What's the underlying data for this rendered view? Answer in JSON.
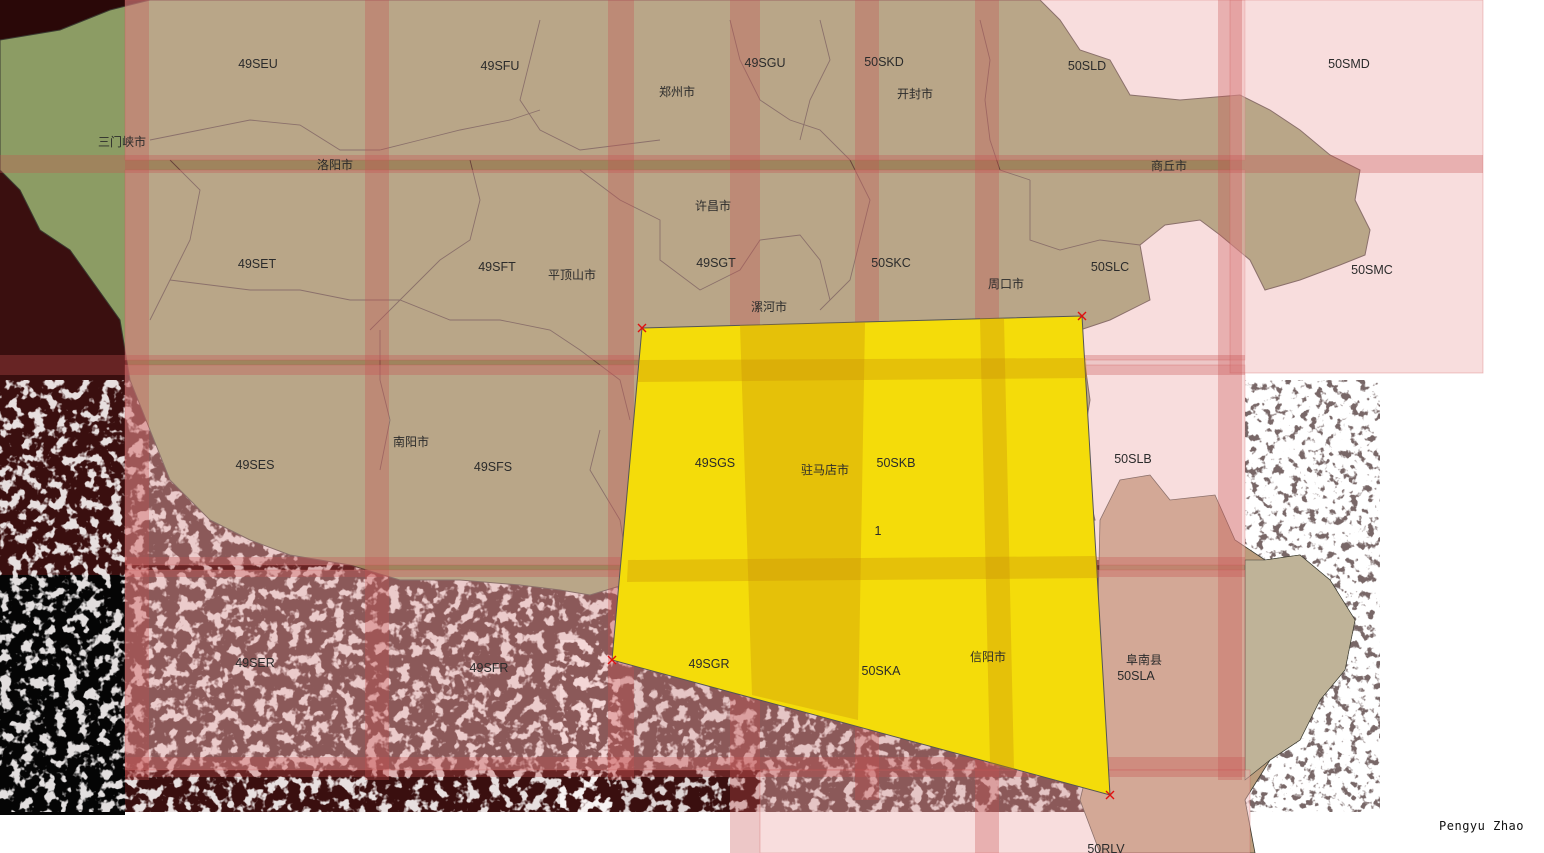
{
  "map": {
    "tiles": [
      {
        "label": "49SEU"
      },
      {
        "label": "49SFU"
      },
      {
        "label": "49SGU"
      },
      {
        "label": "50SKD"
      },
      {
        "label": "50SLD"
      },
      {
        "label": "50SMD"
      },
      {
        "label": "49SET"
      },
      {
        "label": "49SFT"
      },
      {
        "label": "49SGT"
      },
      {
        "label": "50SKC"
      },
      {
        "label": "50SLC"
      },
      {
        "label": "50SMC"
      },
      {
        "label": "49SES"
      },
      {
        "label": "49SFS"
      },
      {
        "label": "49SGS"
      },
      {
        "label": "50SKB"
      },
      {
        "label": "50SLB"
      },
      {
        "label": "49SER"
      },
      {
        "label": "49SFR"
      },
      {
        "label": "49SGR"
      },
      {
        "label": "50SKA"
      },
      {
        "label": "50SLA"
      },
      {
        "label": "50RLV"
      }
    ],
    "cities": [
      {
        "name": "三门峡市"
      },
      {
        "name": "洛阳市"
      },
      {
        "name": "郑州市"
      },
      {
        "name": "开封市"
      },
      {
        "name": "商丘市"
      },
      {
        "name": "许昌市"
      },
      {
        "name": "平顶山市"
      },
      {
        "name": "漯河市"
      },
      {
        "name": "周口市"
      },
      {
        "name": "南阳市"
      },
      {
        "name": "驻马店市"
      },
      {
        "name": "信阳市"
      },
      {
        "name": "阜南县"
      }
    ],
    "study_area": {
      "id_label": "1"
    },
    "colors": {
      "province_fill": "#8c9c64",
      "province_border": "#3a3a30",
      "tile_fill": "#f0b4b4",
      "tile_overlap": "#c85050",
      "study_area_fill": "#f4dc0a",
      "study_area_border": "#555555",
      "vertex_marker": "#e01010",
      "terrain_dark": "#3a0f0f",
      "neighbor_fill": "#bc9e7e",
      "neighbor_light": "#bfb398"
    }
  },
  "credit": "Pengyu  Zhao"
}
